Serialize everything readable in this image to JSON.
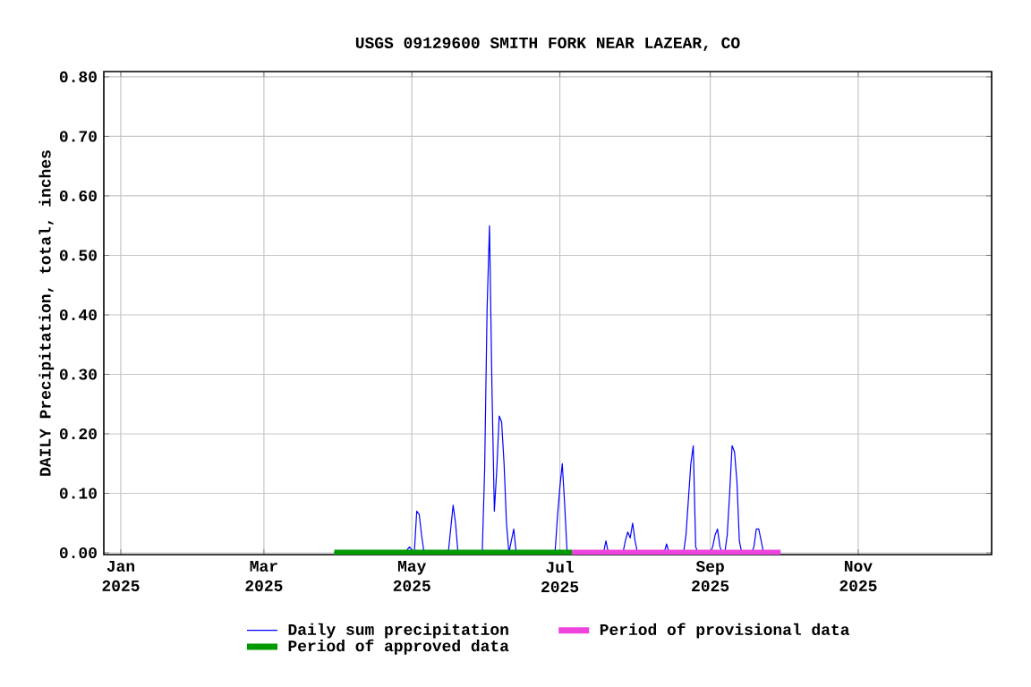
{
  "chart_data": {
    "type": "line",
    "title": "USGS 09129600 SMITH FORK NEAR LAZEAR, CO",
    "ylabel": "DAILY Precipitation, total, inches",
    "xlim": [
      "2024-12-25",
      "2025-12-26"
    ],
    "xticks": [
      {
        "value": "2025-01-01",
        "label": "Jan 2025"
      },
      {
        "value": "2025-03-01",
        "label": "Mar 2025"
      },
      {
        "value": "2025-05-01",
        "label": "May 2025"
      },
      {
        "value": "2025-07-01",
        "label": "Jul 2025"
      },
      {
        "value": "2025-09-01",
        "label": "Sep 2025"
      },
      {
        "value": "2025-11-01",
        "label": "Nov 2025"
      }
    ],
    "ylim": [
      -0.003,
      0.809
    ],
    "yticks": [
      {
        "value": 0,
        "label": "0.00"
      },
      {
        "value": 0.1,
        "label": "0.10"
      },
      {
        "value": 0.2,
        "label": "0.20"
      },
      {
        "value": 0.3,
        "label": "0.30"
      },
      {
        "value": 0.4,
        "label": "0.40"
      },
      {
        "value": 0.5,
        "label": "0.50"
      },
      {
        "value": 0.6,
        "label": "0.60"
      },
      {
        "value": 0.7,
        "label": "0.70"
      },
      {
        "value": 0.8,
        "label": "0.80"
      }
    ],
    "grid": true,
    "legend": "bottom",
    "series": [
      {
        "name": "Daily sum precipitation",
        "color": "#0000ff",
        "x": [
          "2025-03-30",
          "2025-04-28",
          "2025-04-30",
          "2025-05-02",
          "2025-05-03",
          "2025-05-04",
          "2025-05-05",
          "2025-05-06",
          "2025-05-16",
          "2025-05-18",
          "2025-05-19",
          "2025-05-20",
          "2025-05-30",
          "2025-05-31",
          "2025-06-01",
          "2025-06-02",
          "2025-06-03",
          "2025-06-04",
          "2025-06-05",
          "2025-06-06",
          "2025-06-07",
          "2025-06-08",
          "2025-06-09",
          "2025-06-10",
          "2025-06-11",
          "2025-06-12",
          "2025-06-13",
          "2025-06-29",
          "2025-06-30",
          "2025-07-01",
          "2025-07-02",
          "2025-07-03",
          "2025-07-04",
          "2025-07-19",
          "2025-07-20",
          "2025-07-21",
          "2025-07-27",
          "2025-07-28",
          "2025-07-29",
          "2025-07-30",
          "2025-07-31",
          "2025-08-01",
          "2025-08-02",
          "2025-08-13",
          "2025-08-14",
          "2025-08-15",
          "2025-08-21",
          "2025-08-22",
          "2025-08-23",
          "2025-08-24",
          "2025-08-25",
          "2025-08-26",
          "2025-08-27",
          "2025-09-01",
          "2025-09-02",
          "2025-09-03",
          "2025-09-04",
          "2025-09-05",
          "2025-09-06",
          "2025-09-07",
          "2025-09-08",
          "2025-09-09",
          "2025-09-10",
          "2025-09-11",
          "2025-09-12",
          "2025-09-13",
          "2025-09-14",
          "2025-09-18",
          "2025-09-19",
          "2025-09-20",
          "2025-09-21",
          "2025-09-22",
          "2025-09-23",
          "2025-09-30"
        ],
        "values": [
          0,
          0,
          0.01,
          0,
          0.07,
          0.065,
          0.03,
          0,
          0,
          0.08,
          0.05,
          0,
          0,
          0.14,
          0.41,
          0.55,
          0.28,
          0.07,
          0.14,
          0.23,
          0.22,
          0.15,
          0.05,
          0,
          0.02,
          0.04,
          0,
          0,
          0.06,
          0.11,
          0.15,
          0.08,
          0,
          0,
          0.02,
          0,
          0,
          0.02,
          0.035,
          0.025,
          0.05,
          0.02,
          0,
          0,
          0.015,
          0,
          0,
          0.03,
          0.09,
          0.15,
          0.18,
          0.01,
          0,
          0,
          0.01,
          0.03,
          0.04,
          0.01,
          0,
          0,
          0.03,
          0.1,
          0.18,
          0.17,
          0.12,
          0.02,
          0,
          0,
          0.01,
          0.04,
          0.04,
          0.02,
          0,
          0
        ]
      },
      {
        "name": "Period of provisional data",
        "color": "#ee44dd",
        "x": [
          "2025-07-06",
          "2025-09-30"
        ],
        "values": [
          0,
          0
        ]
      },
      {
        "name": "Period of approved data",
        "color": "#009900",
        "x": [
          "2025-03-30",
          "2025-07-06"
        ],
        "values": [
          0,
          0
        ]
      }
    ]
  }
}
